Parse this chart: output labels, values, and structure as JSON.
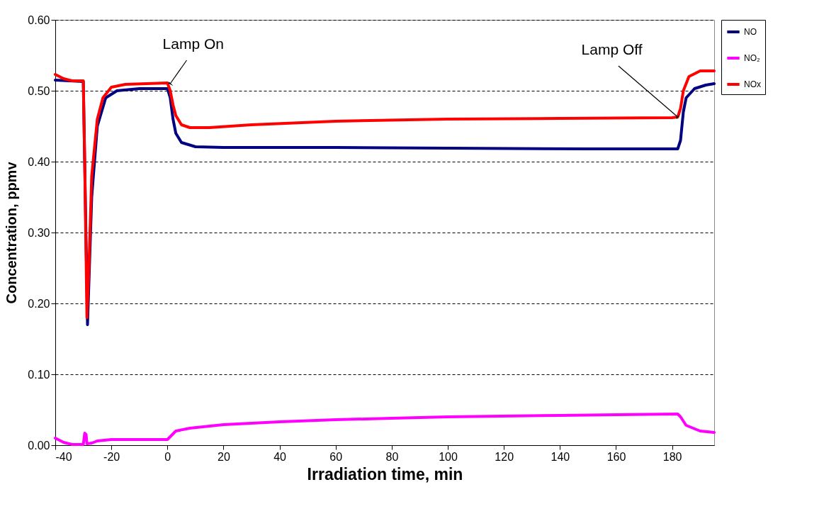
{
  "chart_data": {
    "type": "line",
    "xlabel": "Irradiation time, min",
    "ylabel": "Concentration, ppmv",
    "xlim": [
      -40,
      195
    ],
    "xticks": [
      -40,
      -20,
      0,
      20,
      40,
      60,
      80,
      100,
      120,
      140,
      160,
      180
    ],
    "ylim": [
      0,
      0.6
    ],
    "yticks": [
      {
        "value": 0,
        "label": "0.00"
      },
      {
        "value": 0.1,
        "label": "0.10"
      },
      {
        "value": 0.2,
        "label": "0.20"
      },
      {
        "value": 0.3,
        "label": "0.30"
      },
      {
        "value": 0.4,
        "label": "0.40"
      },
      {
        "value": 0.5,
        "label": "0.50"
      },
      {
        "value": 0.6,
        "label": "0.60"
      }
    ],
    "grid": "y",
    "legend": "right",
    "marker": "none",
    "line_style": "solid",
    "annotations": [
      {
        "text": "Lamp On",
        "x": 1,
        "y": 0.51
      },
      {
        "text": "Lamp Off",
        "x": 182,
        "y": 0.463
      }
    ],
    "series": [
      {
        "name": "NO",
        "color": "#000080",
        "x": [
          -40,
          -30,
          -28.5,
          -27,
          -25,
          -22,
          -18,
          -10,
          0,
          1,
          2,
          3,
          5,
          10,
          20,
          60,
          100,
          150,
          182,
          183,
          184,
          185,
          188,
          192,
          195
        ],
        "values": [
          0.515,
          0.513,
          0.17,
          0.35,
          0.45,
          0.49,
          0.5,
          0.503,
          0.503,
          0.49,
          0.46,
          0.44,
          0.427,
          0.421,
          0.42,
          0.42,
          0.419,
          0.418,
          0.418,
          0.43,
          0.47,
          0.49,
          0.503,
          0.508,
          0.51
        ]
      },
      {
        "name": "NO₂",
        "color": "#ff00ff",
        "x": [
          -40,
          -37,
          -34,
          -30,
          -29.5,
          -29,
          -28.7,
          -27,
          -25,
          -20,
          -10,
          0,
          1,
          3,
          8,
          20,
          40,
          60,
          80,
          100,
          140,
          160,
          182,
          183,
          185,
          190,
          195
        ],
        "values": [
          0.01,
          0.004,
          0.001,
          0.001,
          0.017,
          0.015,
          0.002,
          0.003,
          0.006,
          0.008,
          0.008,
          0.008,
          0.012,
          0.02,
          0.024,
          0.029,
          0.033,
          0.036,
          0.038,
          0.04,
          0.042,
          0.043,
          0.044,
          0.04,
          0.028,
          0.02,
          0.018
        ]
      },
      {
        "name": "NOx",
        "color": "#ff0000",
        "x": [
          -40,
          -37,
          -34,
          -30,
          -29.5,
          -28.7,
          -28,
          -27,
          -25,
          -23,
          -20,
          -15,
          0,
          1,
          2,
          3,
          5,
          8,
          15,
          30,
          60,
          100,
          140,
          180,
          182,
          183,
          184,
          186,
          190,
          195
        ],
        "values": [
          0.523,
          0.517,
          0.514,
          0.514,
          0.4,
          0.18,
          0.25,
          0.38,
          0.46,
          0.49,
          0.505,
          0.509,
          0.511,
          0.5,
          0.48,
          0.465,
          0.452,
          0.448,
          0.448,
          0.452,
          0.457,
          0.46,
          0.461,
          0.462,
          0.463,
          0.475,
          0.5,
          0.52,
          0.528,
          0.528
        ]
      }
    ]
  }
}
